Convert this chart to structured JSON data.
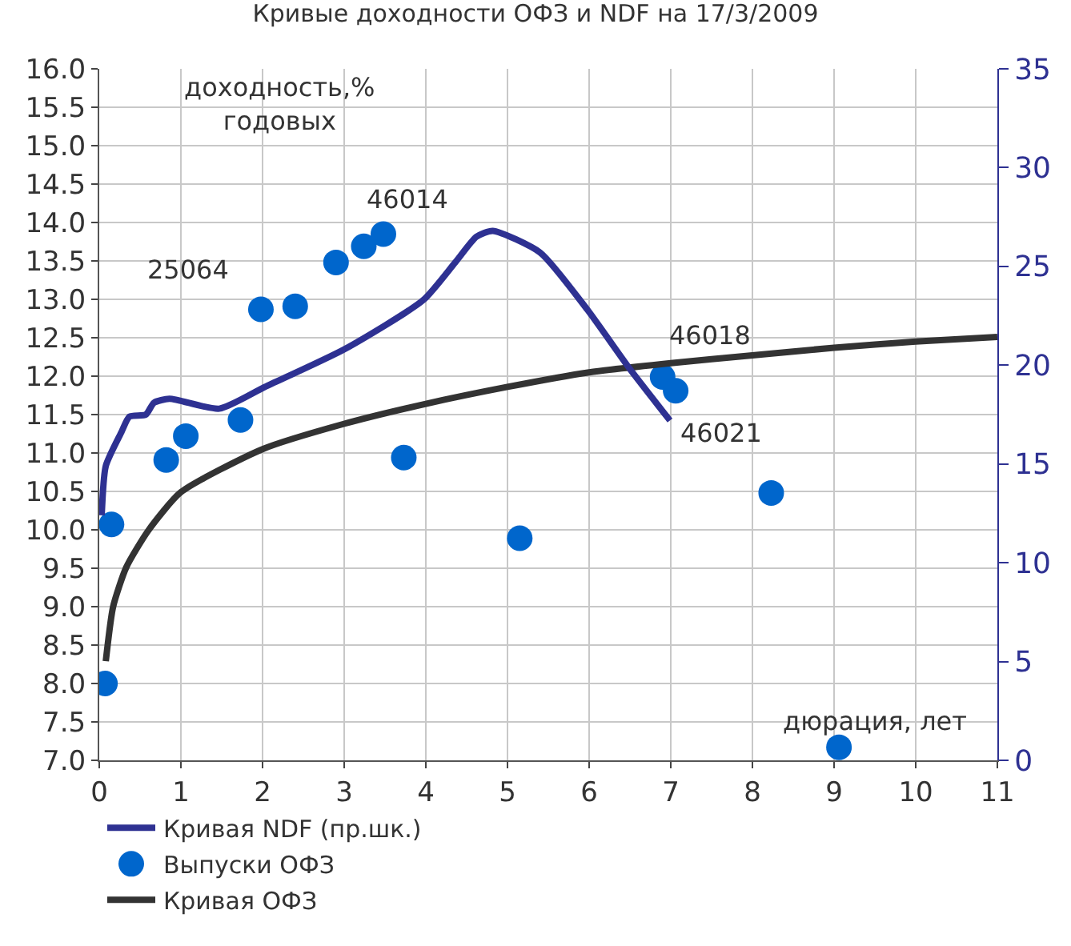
{
  "chart_data": {
    "type": "line",
    "title": "Кривые доходности ОФЗ и NDF на 17/3/2009",
    "xlabel": "дюрация, лет",
    "ylabel": "доходность,%\nгодовых",
    "xlim": [
      0,
      11
    ],
    "xticks": [
      0,
      1,
      2,
      3,
      4,
      5,
      6,
      7,
      8,
      9,
      10,
      11
    ],
    "ylim": [
      7.0,
      16.0
    ],
    "yticks": [
      {
        "value": 7,
        "label": "7.0"
      },
      7.5,
      {
        "value": 8,
        "label": "8.0"
      },
      8.5,
      {
        "value": 9,
        "label": "9.0"
      },
      9.5,
      {
        "value": 10,
        "label": "10.0"
      },
      10.5,
      {
        "value": 11,
        "label": "11.0"
      },
      11.5,
      {
        "value": 12,
        "label": "12.0"
      },
      12.5,
      {
        "value": 13,
        "label": "13.0"
      },
      13.5,
      {
        "value": 14,
        "label": "14.0"
      },
      14.5,
      {
        "value": 15,
        "label": "15.0"
      },
      15.5,
      {
        "value": 16,
        "label": "16.0"
      }
    ],
    "y2lim": [
      0,
      35
    ],
    "y2ticks": [
      0,
      5,
      10,
      15,
      20,
      25,
      30,
      35
    ],
    "grid": true,
    "legend": "bottom",
    "series": [
      {
        "name": "Кривая NDF (пр.шк.)",
        "axis": "y2",
        "color": "#2e3192",
        "marker": "none",
        "line_style": "solid",
        "x": [
          0.03,
          0.08,
          0.27,
          0.37,
          0.57,
          0.67,
          0.86,
          1.47,
          2.03,
          3.0,
          3.97,
          4.36,
          4.62,
          4.82,
          5.4,
          5.98,
          6.5,
          6.99
        ],
        "values": [
          12.4,
          14.9,
          16.6,
          17.4,
          17.5,
          18.1,
          18.3,
          17.8,
          18.9,
          20.8,
          23.3,
          25.2,
          26.5,
          26.8,
          25.7,
          22.8,
          19.8,
          17.2
        ]
      },
      {
        "name": "Выпуски ОФЗ",
        "type": "scatter",
        "color": "#0066cc",
        "marker": "circle",
        "x": [
          0.07,
          0.15,
          0.82,
          1.06,
          1.73,
          1.98,
          2.4,
          2.9,
          3.24,
          3.48,
          3.73,
          5.15,
          6.9,
          7.06,
          8.23,
          9.06
        ],
        "values": [
          8.0,
          10.07,
          10.91,
          11.22,
          11.43,
          12.87,
          12.91,
          13.48,
          13.69,
          13.85,
          10.94,
          9.89,
          11.99,
          11.81,
          10.48,
          7.17
        ]
      },
      {
        "name": "Кривая ОФЗ",
        "color": "#333333",
        "marker": "none",
        "line_style": "solid",
        "x": [
          0.08,
          0.17,
          0.33,
          0.6,
          1.0,
          2.0,
          3.0,
          4.0,
          5.0,
          6.0,
          7.0,
          8.0,
          9.0,
          10.0,
          11.0
        ],
        "values": [
          8.29,
          9.0,
          9.51,
          9.99,
          10.49,
          11.05,
          11.38,
          11.64,
          11.86,
          12.05,
          12.17,
          12.27,
          12.37,
          12.45,
          12.51
        ]
      }
    ],
    "annotations": [
      {
        "text": "25064",
        "x": 1.98,
        "y": 12.87
      },
      {
        "text": "46014",
        "x": 3.48,
        "y": 13.85
      },
      {
        "text": "46018",
        "x": 6.9,
        "y": 11.99
      },
      {
        "text": "46021",
        "x": 7.06,
        "y": 11.81
      }
    ]
  }
}
